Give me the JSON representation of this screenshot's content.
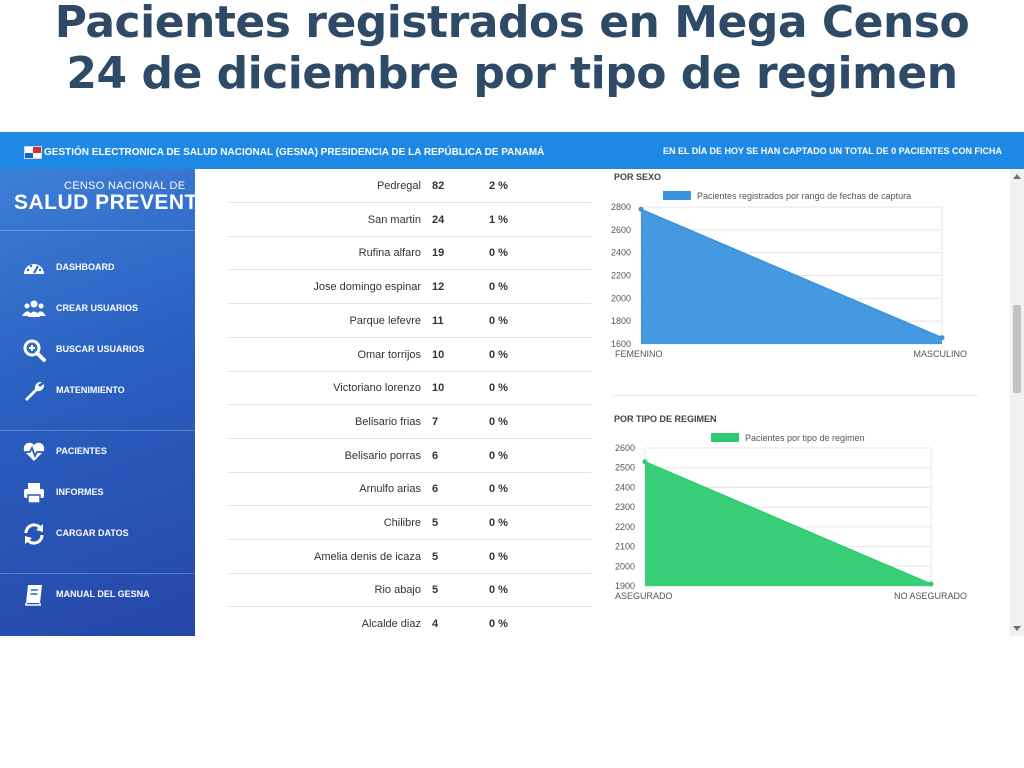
{
  "slide": {
    "title_line1": "Pacientes registrados en Mega Censo",
    "title_line2": "24 de diciembre por tipo de regimen"
  },
  "header": {
    "left_text": "GESTIÓN ELECTRONICA DE SALUD NACIONAL (GESNA) PRESIDENCIA DE LA REPÚBLICA DE PANAMÁ",
    "right_text": "EN EL DÍA DE HOY SE HAN CAPTADO UN TOTAL DE 0 PACIENTES CON FICHA",
    "accent": "#1e88e5"
  },
  "logo": {
    "small": "CENSO NACIONAL DE",
    "big": "SALUD PREVENTIVA"
  },
  "sidebar": {
    "items": [
      {
        "label": "DASHBOARD",
        "icon": "dashboard-icon"
      },
      {
        "label": "CREAR USUARIOS",
        "icon": "users-icon"
      },
      {
        "label": "BUSCAR USUARIOS",
        "icon": "search-icon"
      },
      {
        "label": "MATENIMIENTO",
        "icon": "wrench-icon"
      },
      {
        "label": "PACIENTES",
        "icon": "heartbeat-icon"
      },
      {
        "label": "INFORMES",
        "icon": "printer-icon"
      },
      {
        "label": "CARGAR DATOS",
        "icon": "refresh-icon"
      },
      {
        "label": "MANUAL DEL GESNA",
        "icon": "book-icon"
      }
    ]
  },
  "table": {
    "rows": [
      {
        "name": "Pedregal",
        "count": "82",
        "pct": "2 %"
      },
      {
        "name": "San martin",
        "count": "24",
        "pct": "1 %"
      },
      {
        "name": "Rufina alfaro",
        "count": "19",
        "pct": "0 %"
      },
      {
        "name": "Jose domingo espinar",
        "count": "12",
        "pct": "0 %"
      },
      {
        "name": "Parque lefevre",
        "count": "11",
        "pct": "0 %"
      },
      {
        "name": "Omar torrijos",
        "count": "10",
        "pct": "0 %"
      },
      {
        "name": "Victoriano lorenzo",
        "count": "10",
        "pct": "0 %"
      },
      {
        "name": "Belisario frias",
        "count": "7",
        "pct": "0 %"
      },
      {
        "name": "Belisario porras",
        "count": "6",
        "pct": "0 %"
      },
      {
        "name": "Arnulfo arias",
        "count": "6",
        "pct": "0 %"
      },
      {
        "name": "Chilibre",
        "count": "5",
        "pct": "0 %"
      },
      {
        "name": "Amelia denis de icaza",
        "count": "5",
        "pct": "0 %"
      },
      {
        "name": "Rio abajo",
        "count": "5",
        "pct": "0 %"
      },
      {
        "name": "Alcalde diaz",
        "count": "4",
        "pct": "0 %"
      }
    ]
  },
  "chart_data": [
    {
      "type": "area",
      "title": "POR SEXO",
      "legend": "Pacientes registrados por rango de fechas de captura",
      "categories": [
        "FEMENINO",
        "MASCULINO"
      ],
      "values": [
        2780,
        1655
      ],
      "ylim": [
        1600,
        2800
      ],
      "yticks": [
        "2800",
        "2600",
        "2400",
        "2200",
        "2000",
        "1800",
        "1600"
      ],
      "color": "#3a93de"
    },
    {
      "type": "area",
      "title": "POR TIPO DE REGIMEN",
      "legend": "Pacientes por tipo de regimen",
      "categories": [
        "ASEGURADO",
        "NO ASEGURADO"
      ],
      "values": [
        2530,
        1910
      ],
      "ylim": [
        1900,
        2600
      ],
      "yticks": [
        "2600",
        "2500",
        "2400",
        "2300",
        "2200",
        "2100",
        "2000",
        "1900"
      ],
      "color": "#2ecc71"
    }
  ]
}
